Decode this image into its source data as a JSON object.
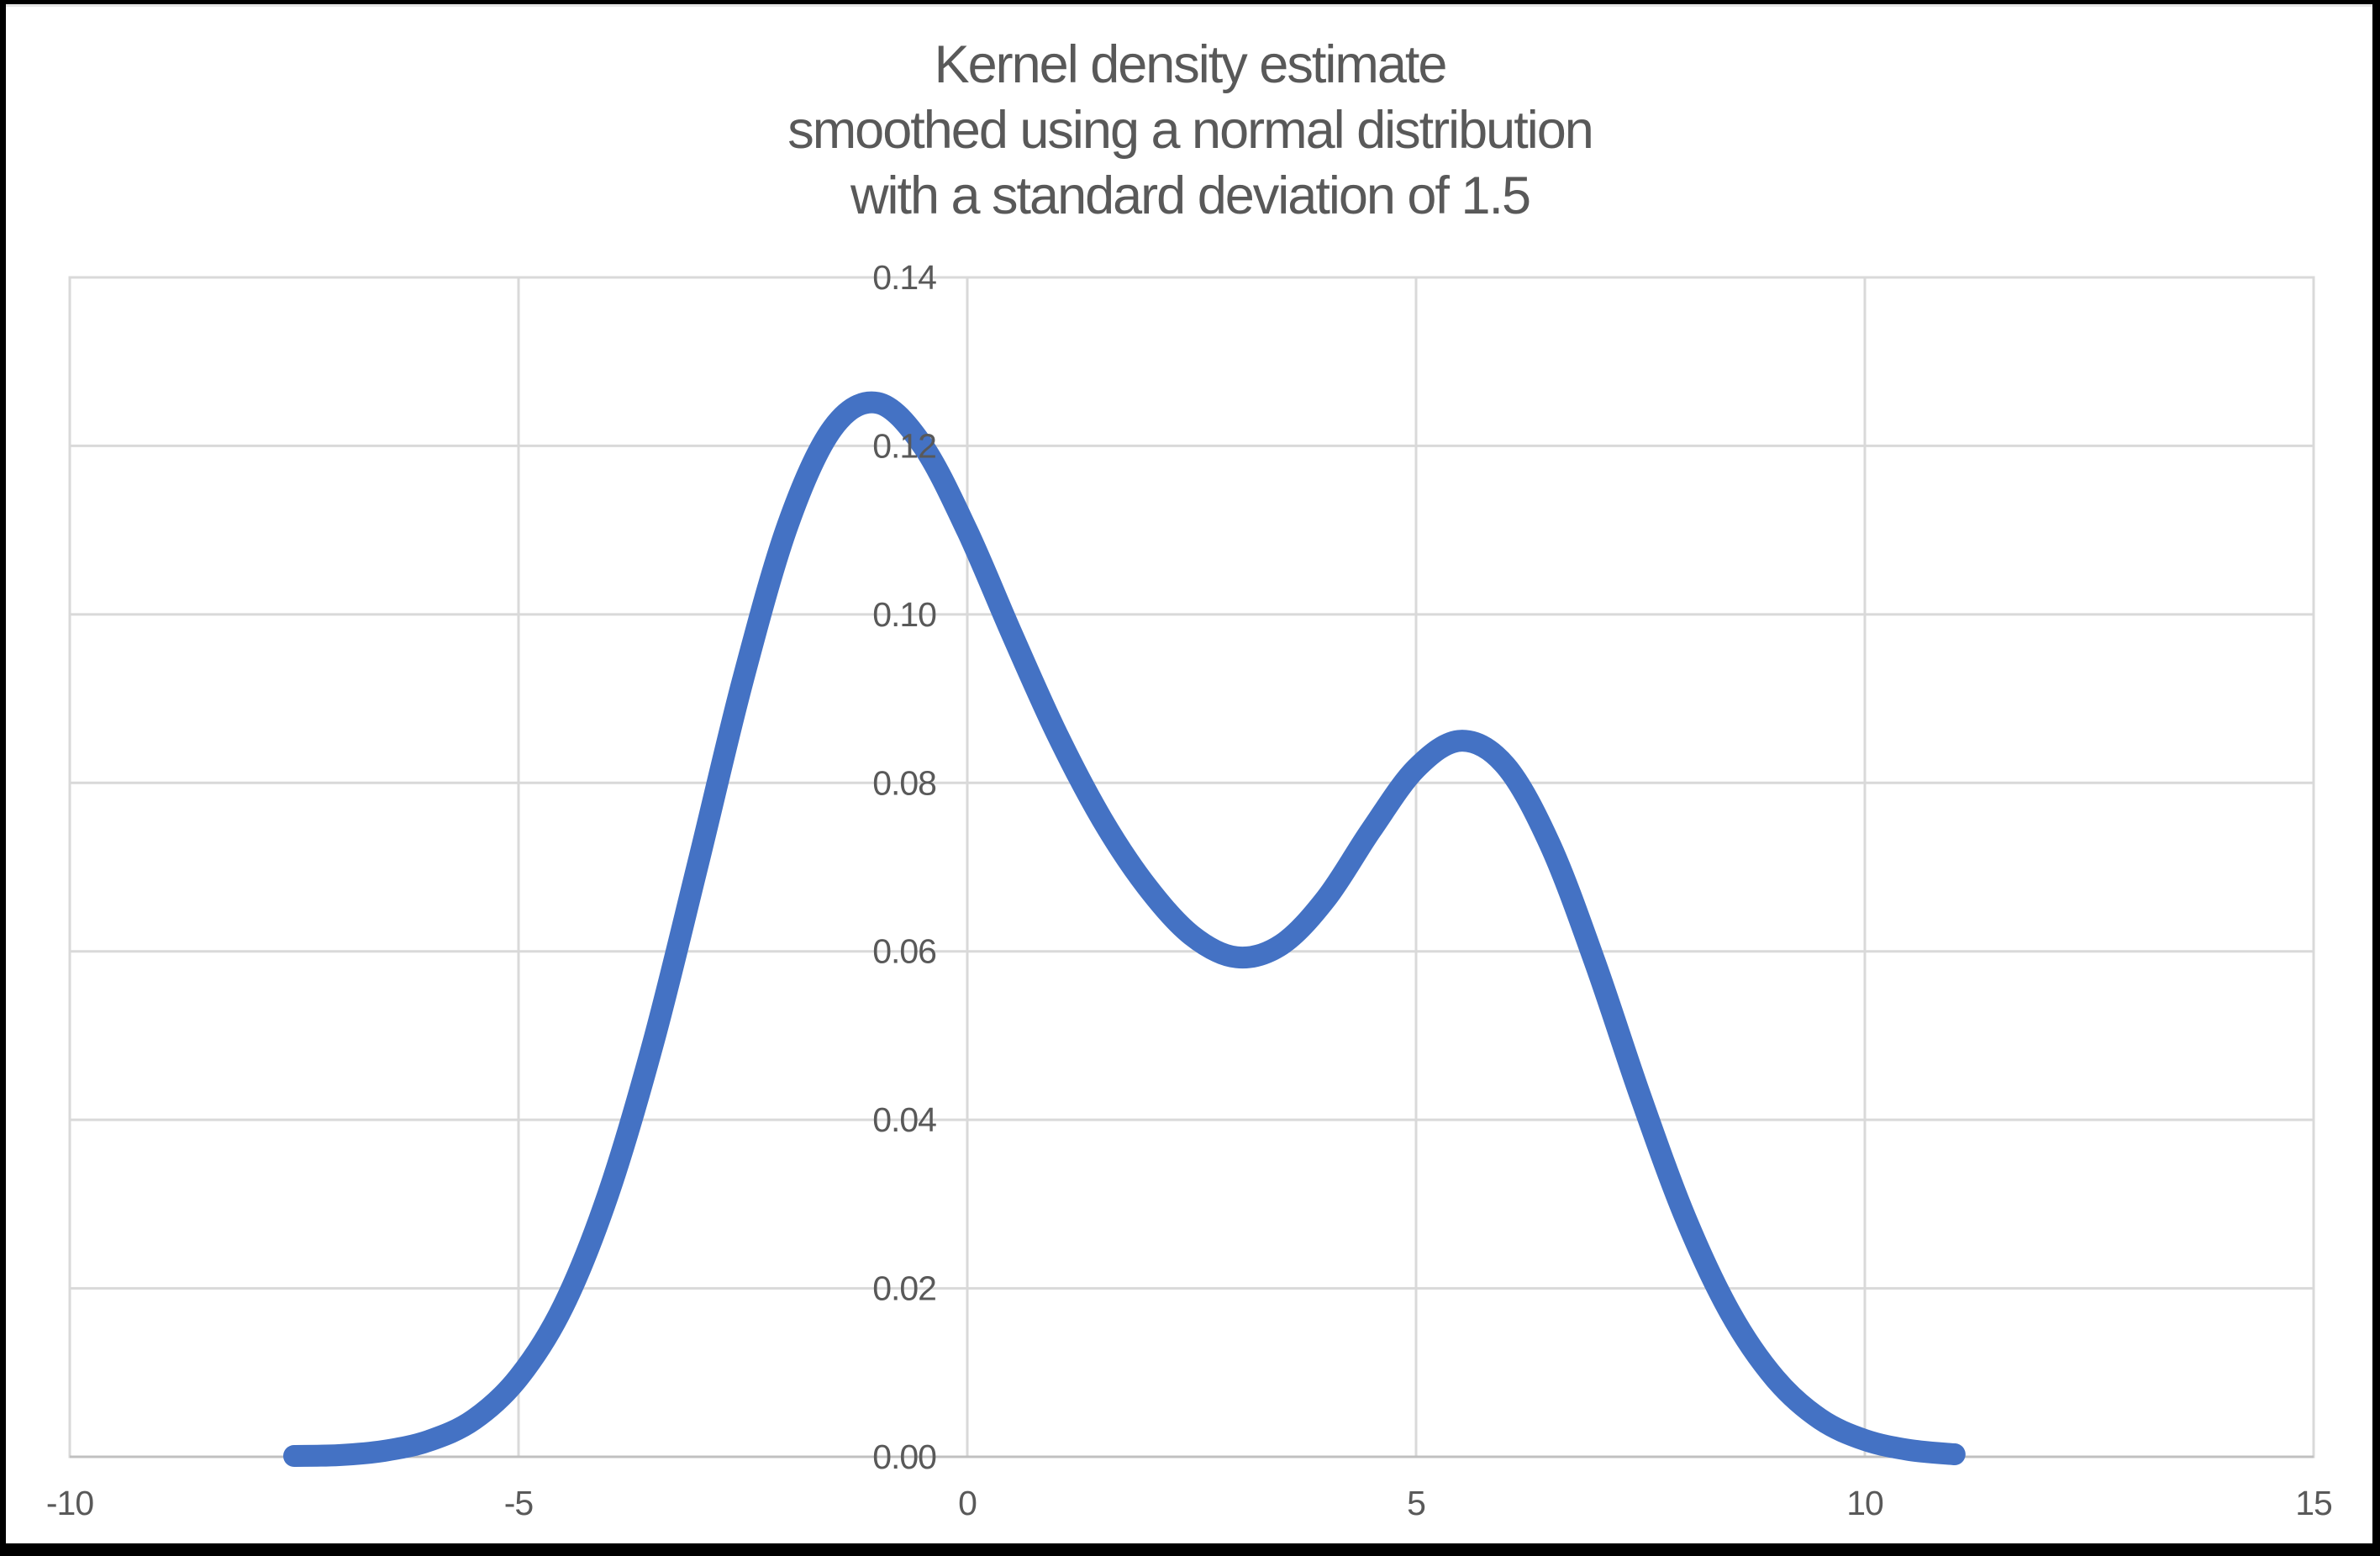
{
  "chart_data": {
    "type": "line",
    "title": "Kernel density estimate smoothed using a normal distribution with a standard deviation of 1.5",
    "title_lines": [
      "Kernel density estimate",
      "smoothed using a normal distribution",
      "with a standard deviation of 1.5"
    ],
    "xlabel": "",
    "ylabel": "",
    "xlim": [
      -10,
      15
    ],
    "ylim": [
      0,
      0.14
    ],
    "x_ticks": [
      "-10",
      "-5",
      "0",
      "5",
      "10",
      "15"
    ],
    "y_ticks": [
      "0.00",
      "0.02",
      "0.04",
      "0.06",
      "0.08",
      "0.10",
      "0.12",
      "0.14"
    ],
    "grid": true,
    "legend": "none",
    "kernel_std_dev": 1.5,
    "left_peak": {
      "x": -1.05,
      "y": 0.125
    },
    "right_peak": {
      "x": 5.5,
      "y": 0.085
    },
    "valley": {
      "x": 3.1,
      "y": 0.059
    },
    "colors": {
      "line": "#4472C4",
      "gridline": "#D9D9D9",
      "axis": "#C0C0C0",
      "text": "#595959",
      "background": "#FFFFFF",
      "frame": "#000000"
    },
    "series": [
      {
        "name": "kernel density estimate",
        "x": [
          -7.5,
          -7.0,
          -6.5,
          -6.0,
          -5.5,
          -5.0,
          -4.5,
          -4.0,
          -3.5,
          -3.0,
          -2.5,
          -2.0,
          -1.5,
          -1.0,
          -0.5,
          0.0,
          0.5,
          1.0,
          1.5,
          2.0,
          2.5,
          3.0,
          3.5,
          4.0,
          4.5,
          5.0,
          5.5,
          6.0,
          6.5,
          7.0,
          7.5,
          8.0,
          8.5,
          9.0,
          9.5,
          10.0,
          10.5,
          11.0
        ],
        "y": [
          0.0001,
          0.0002,
          0.0007,
          0.0019,
          0.0044,
          0.0094,
          0.0179,
          0.0312,
          0.0491,
          0.0704,
          0.0922,
          0.1106,
          0.1221,
          0.1251,
          0.1201,
          0.1099,
          0.0976,
          0.0858,
          0.0757,
          0.0677,
          0.0619,
          0.0593,
          0.0608,
          0.0663,
          0.0744,
          0.0817,
          0.085,
          0.082,
          0.0725,
          0.0585,
          0.0428,
          0.0284,
          0.0171,
          0.0093,
          0.0045,
          0.002,
          0.0008,
          0.0003
        ]
      }
    ]
  }
}
